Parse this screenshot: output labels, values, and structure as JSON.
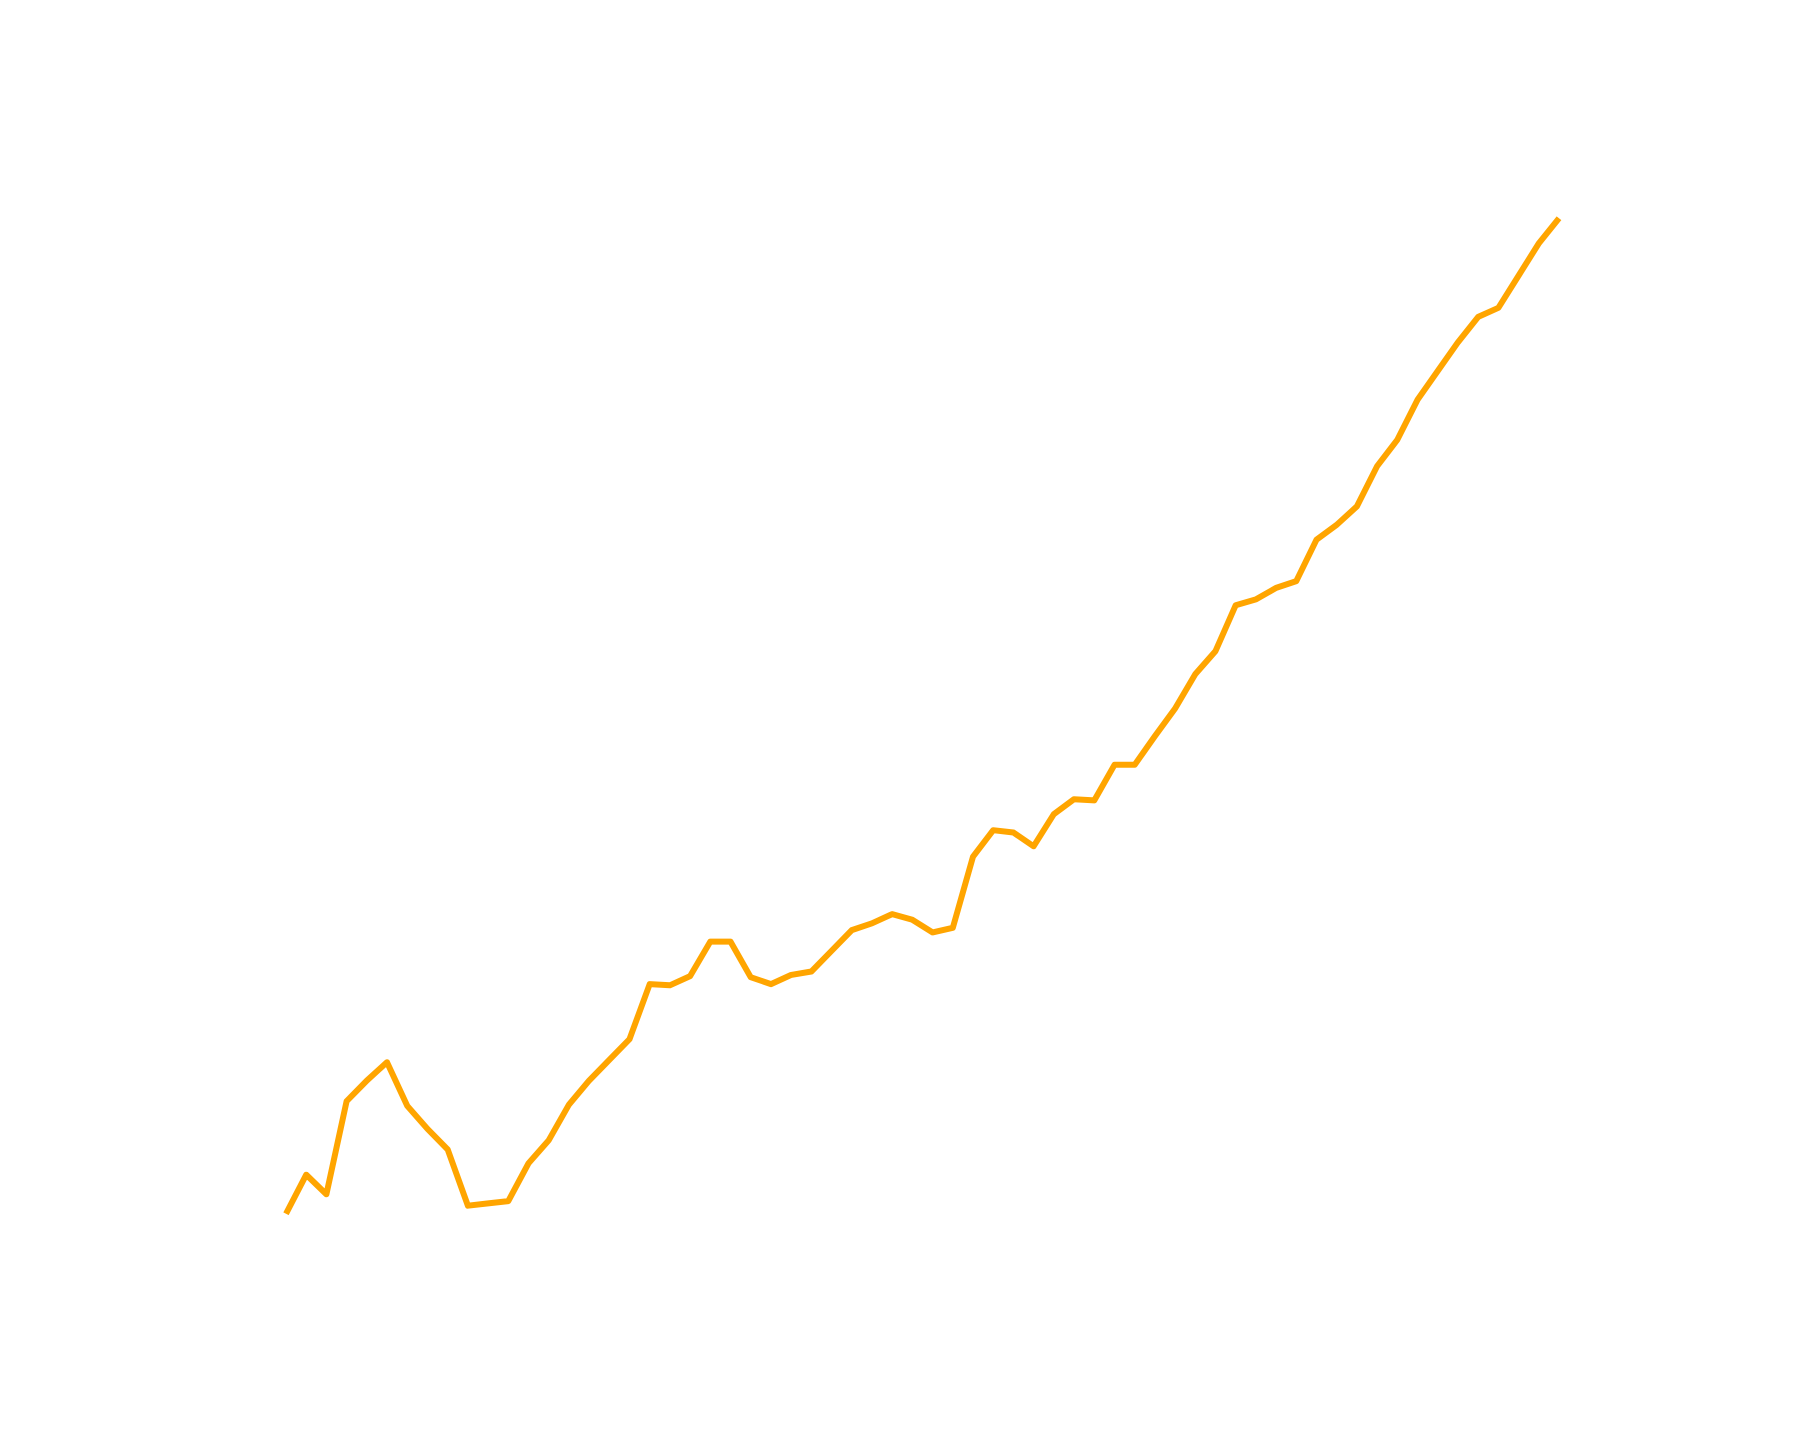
{
  "chart_data": {
    "type": "line",
    "color": "#ffa500",
    "values": [
      197,
      231,
      214,
      295,
      313,
      329,
      291,
      271,
      253,
      204,
      206,
      208,
      241,
      261,
      292,
      313,
      331,
      349,
      397,
      396,
      404,
      434,
      434,
      403,
      397,
      405,
      408,
      426,
      444,
      450,
      458,
      453,
      442,
      446,
      508,
      531,
      529,
      517,
      545,
      558,
      557,
      588,
      588,
      613,
      637,
      667,
      687,
      727,
      732,
      742,
      748,
      784,
      797,
      813,
      848,
      871,
      906,
      931,
      956,
      978,
      986,
      1014,
      1042,
      1064
    ],
    "ylim": [
      0,
      1254
    ]
  }
}
